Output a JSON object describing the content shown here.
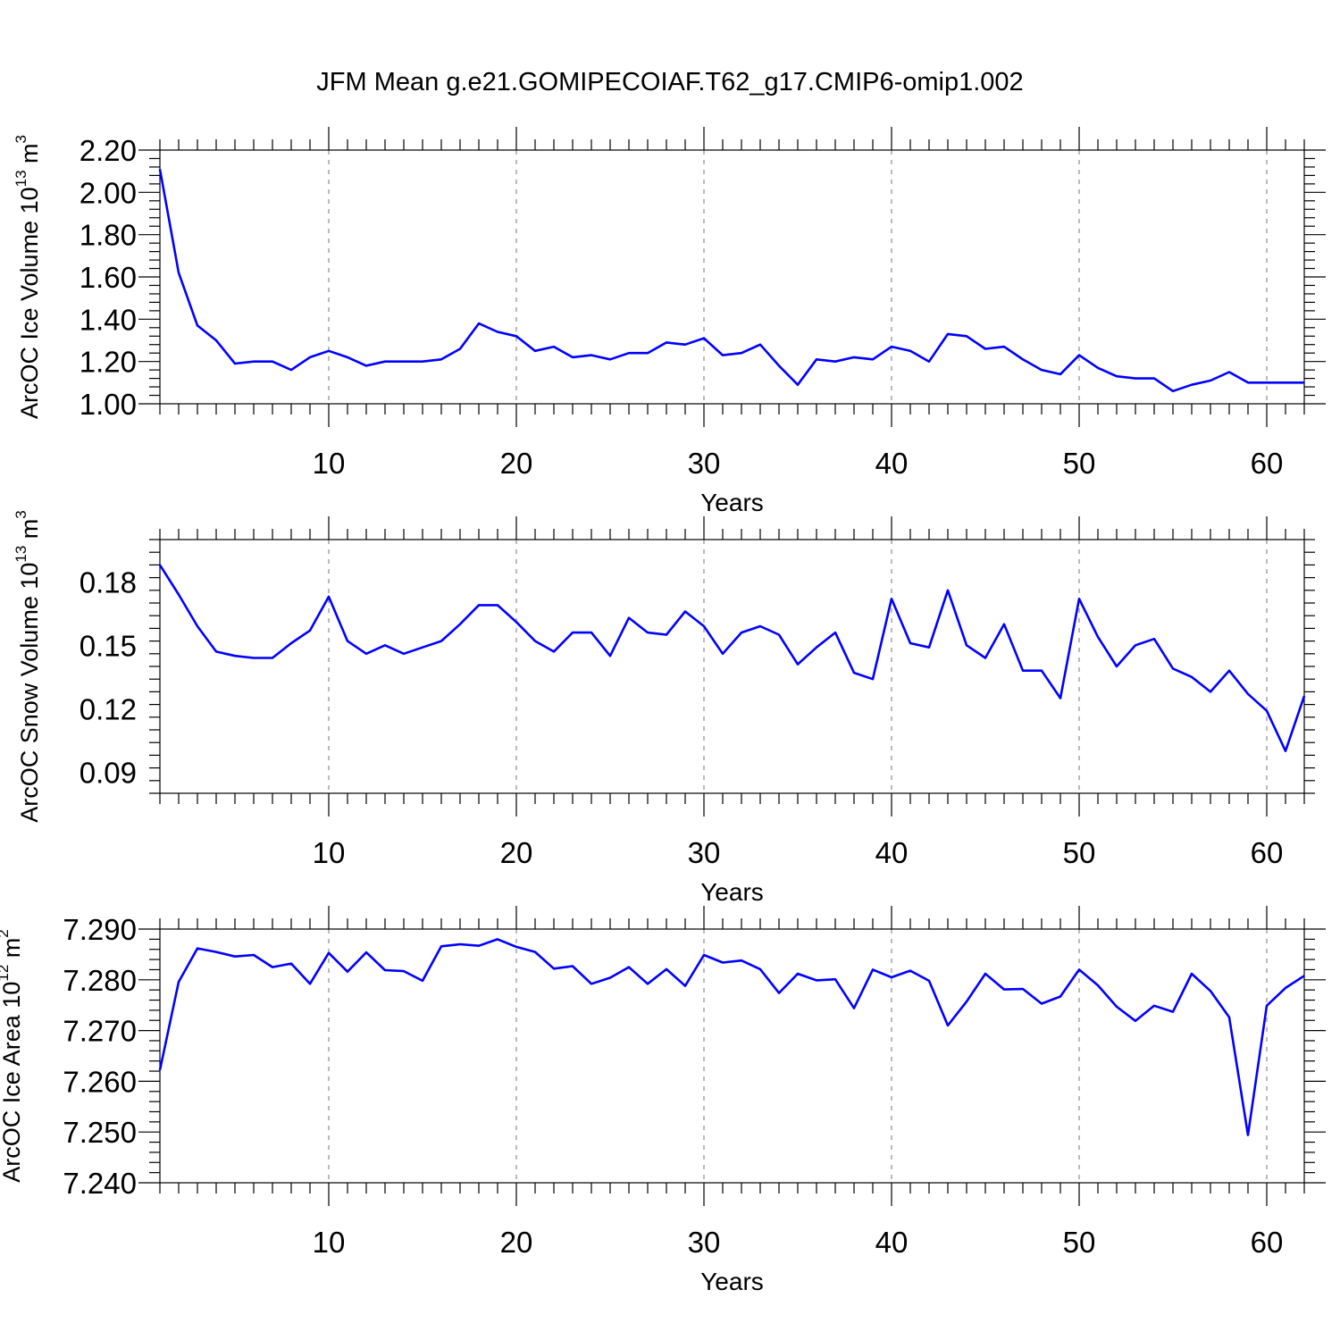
{
  "title": "JFM Mean g.e21.GOMIPECOIAF.T62_g17.CMIP6-omip1.002",
  "colors": {
    "line": "#0000ff",
    "grid": "#777777",
    "axis": "#000000"
  },
  "chart_data": [
    {
      "type": "line",
      "name": "ice-volume",
      "ylabel": "ArcOC Ice Volume 10",
      "ylabel_exp": "13",
      "ylabel_unit": " m",
      "ylabel_unit_exp": "3",
      "xlabel": "Years",
      "xlim": [
        1,
        62
      ],
      "ylim": [
        1.0,
        2.2
      ],
      "xticks": [
        10,
        20,
        30,
        40,
        50,
        60
      ],
      "xtick_labels": [
        "10",
        "20",
        "30",
        "40",
        "50",
        "60"
      ],
      "yticks": [
        1.0,
        1.2,
        1.4,
        1.6,
        1.8,
        2.0,
        2.2
      ],
      "ytick_labels": [
        "1.00",
        "1.20",
        "1.40",
        "1.60",
        "1.80",
        "2.00",
        "2.20"
      ],
      "grid": "vertical-dashed",
      "x_start": 1,
      "values": [
        2.11,
        1.62,
        1.37,
        1.3,
        1.19,
        1.2,
        1.2,
        1.16,
        1.22,
        1.25,
        1.22,
        1.18,
        1.2,
        1.2,
        1.2,
        1.21,
        1.26,
        1.38,
        1.34,
        1.32,
        1.25,
        1.27,
        1.22,
        1.23,
        1.21,
        1.24,
        1.24,
        1.29,
        1.28,
        1.31,
        1.23,
        1.24,
        1.28,
        1.18,
        1.09,
        1.21,
        1.2,
        1.22,
        1.21,
        1.27,
        1.25,
        1.2,
        1.33,
        1.32,
        1.26,
        1.27,
        1.21,
        1.16,
        1.14,
        1.23,
        1.17,
        1.13,
        1.12,
        1.12,
        1.06,
        1.09,
        1.11,
        1.15,
        1.1,
        1.1,
        1.1,
        1.1
      ]
    },
    {
      "type": "line",
      "name": "snow-volume",
      "ylabel": "ArcOC Snow Volume 10",
      "ylabel_exp": "13",
      "ylabel_unit": " m",
      "ylabel_unit_exp": "3",
      "xlabel": "Years",
      "xlim": [
        1,
        62
      ],
      "ylim": [
        0.08,
        0.2
      ],
      "xticks": [
        10,
        20,
        30,
        40,
        50,
        60
      ],
      "xtick_labels": [
        "10",
        "20",
        "30",
        "40",
        "50",
        "60"
      ],
      "yticks": [
        0.09,
        0.12,
        0.15,
        0.18
      ],
      "ytick_labels": [
        "0.09",
        "0.12",
        "0.15",
        "0.18"
      ],
      "grid": "vertical-dashed",
      "x_start": 1,
      "values": [
        0.188,
        0.174,
        0.159,
        0.147,
        0.145,
        0.144,
        0.144,
        0.151,
        0.157,
        0.173,
        0.152,
        0.146,
        0.15,
        0.146,
        0.149,
        0.152,
        0.16,
        0.169,
        0.169,
        0.161,
        0.152,
        0.147,
        0.156,
        0.156,
        0.145,
        0.163,
        0.156,
        0.155,
        0.166,
        0.159,
        0.146,
        0.156,
        0.159,
        0.155,
        0.141,
        0.149,
        0.156,
        0.137,
        0.134,
        0.172,
        0.151,
        0.149,
        0.176,
        0.15,
        0.144,
        0.16,
        0.138,
        0.138,
        0.125,
        0.172,
        0.154,
        0.14,
        0.15,
        0.153,
        0.139,
        0.135,
        0.128,
        0.138,
        0.127,
        0.119,
        0.1,
        0.126
      ]
    },
    {
      "type": "line",
      "name": "ice-area",
      "ylabel": "ArcOC Ice Area 10",
      "ylabel_exp": "12",
      "ylabel_unit": " m",
      "ylabel_unit_exp": "2",
      "xlabel": "Years",
      "xlim": [
        1,
        62
      ],
      "ylim": [
        7.24,
        7.29
      ],
      "xticks": [
        10,
        20,
        30,
        40,
        50,
        60
      ],
      "xtick_labels": [
        "10",
        "20",
        "30",
        "40",
        "50",
        "60"
      ],
      "yticks": [
        7.24,
        7.25,
        7.26,
        7.27,
        7.28,
        7.29
      ],
      "ytick_labels": [
        "7.240",
        "7.250",
        "7.260",
        "7.270",
        "7.280",
        "7.290"
      ],
      "grid": "vertical-dashed",
      "x_start": 1,
      "values": [
        7.2622,
        7.2796,
        7.2862,
        7.2855,
        7.2846,
        7.2849,
        7.2825,
        7.2832,
        7.2792,
        7.2853,
        7.2816,
        7.2854,
        7.2819,
        7.2817,
        7.2798,
        7.2866,
        7.287,
        7.2867,
        7.288,
        7.2865,
        7.2855,
        7.2822,
        7.2827,
        7.2792,
        7.2804,
        7.2825,
        7.2792,
        7.2821,
        7.2788,
        7.2849,
        7.2834,
        7.2838,
        7.2821,
        7.2774,
        7.2812,
        7.2799,
        7.2801,
        7.2744,
        7.282,
        7.2805,
        7.2818,
        7.2798,
        7.271,
        7.2757,
        7.2812,
        7.2781,
        7.2782,
        7.2753,
        7.2767,
        7.282,
        7.2789,
        7.2747,
        7.2719,
        7.2749,
        7.2737,
        7.2812,
        7.2778,
        7.2726,
        7.2494,
        7.2749,
        7.2784,
        7.2808
      ]
    }
  ]
}
